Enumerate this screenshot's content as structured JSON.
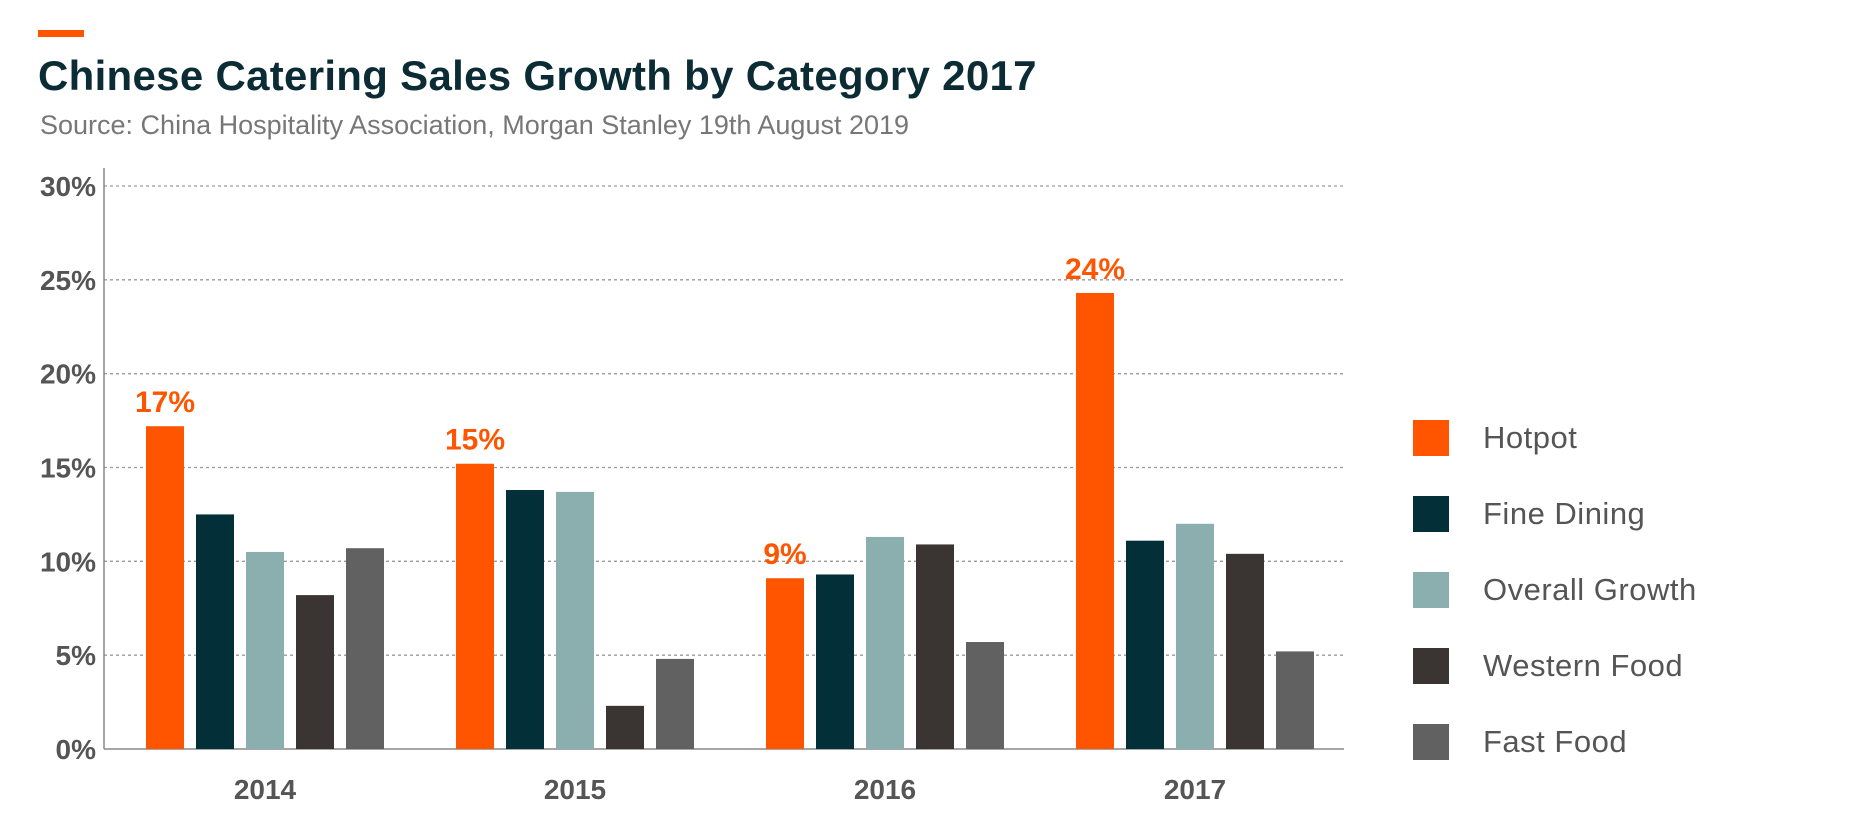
{
  "header": {
    "title": "Chinese Catering Sales Growth by Category 2017",
    "subtitle": "Source: China Hospitality Association, Morgan Stanley 19th August 2019"
  },
  "colors": {
    "accent": "#FF5500",
    "series": [
      "#FF5500",
      "#022F38",
      "#8BAEAF",
      "#3A3533",
      "#616161"
    ]
  },
  "chart_data": {
    "type": "bar",
    "title": "Chinese Catering Sales Growth by Category 2017",
    "subtitle": "Source: China Hospitality Association, Morgan Stanley 19th August 2019",
    "xlabel": "",
    "ylabel": "",
    "categories": [
      "2014",
      "2015",
      "2016",
      "2017"
    ],
    "ylim": [
      0,
      30
    ],
    "yticks": [
      0,
      5,
      10,
      15,
      20,
      25,
      30
    ],
    "ytick_labels": [
      "0%",
      "5%",
      "10%",
      "15%",
      "20%",
      "25%",
      "30%"
    ],
    "grid": true,
    "legend_position": "right",
    "series": [
      {
        "name": "Hotpot",
        "color": "#FF5500",
        "values": [
          17.2,
          15.2,
          9.1,
          24.3
        ],
        "data_labels": [
          "17%",
          "15%",
          "9%",
          "24%"
        ]
      },
      {
        "name": "Fine Dining",
        "color": "#022F38",
        "values": [
          12.5,
          13.8,
          9.3,
          11.1
        ]
      },
      {
        "name": "Overall Growth",
        "color": "#8BAEAF",
        "values": [
          10.5,
          13.7,
          11.3,
          12.0
        ]
      },
      {
        "name": "Western Food",
        "color": "#3A3533",
        "values": [
          8.2,
          2.3,
          10.9,
          10.4
        ]
      },
      {
        "name": "Fast Food",
        "color": "#616161",
        "values": [
          10.7,
          4.8,
          5.7,
          5.2
        ]
      }
    ]
  }
}
